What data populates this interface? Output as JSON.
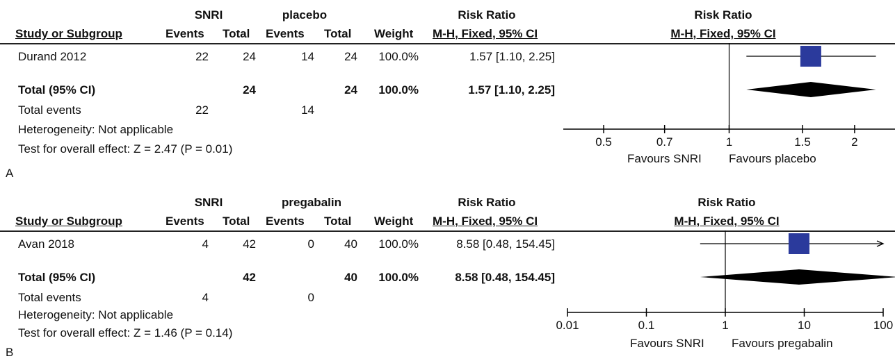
{
  "chart_data": [
    {
      "type": "forest",
      "panel": "A",
      "group_labels": {
        "experimental": "SNRI",
        "control": "placebo"
      },
      "effect_header": "Risk Ratio",
      "method_header": "M-H, Fixed, 95% CI",
      "columns": [
        "Study or Subgroup",
        "Events",
        "Total",
        "Events",
        "Total",
        "Weight",
        "M-H, Fixed, 95% CI"
      ],
      "studies": [
        {
          "name": "Durand 2012",
          "exp_events": "22",
          "exp_total": "24",
          "ctl_events": "14",
          "ctl_total": "24",
          "weight": "100.0%",
          "ci_text": "1.57 [1.10, 2.25]",
          "estimate": 1.57,
          "lower": 1.1,
          "upper": 2.25
        }
      ],
      "total": {
        "label": "Total (95% CI)",
        "exp_total": "24",
        "ctl_total": "24",
        "weight": "100.0%",
        "ci_text": "1.57 [1.10, 2.25]",
        "estimate": 1.57,
        "lower": 1.1,
        "upper": 2.25
      },
      "total_events": {
        "label": "Total events",
        "exp": "22",
        "ctl": "14"
      },
      "heterogeneity": "Heterogeneity: Not applicable",
      "overall_effect": "Test for overall effect: Z = 2.47 (P = 0.01)",
      "axis": {
        "scale": "log",
        "xlim": [
          0.4,
          2.5
        ],
        "ticks": [
          {
            "value": 0.5,
            "label": "0.5"
          },
          {
            "value": 0.7,
            "label": "0.7"
          },
          {
            "value": 1,
            "label": "1"
          },
          {
            "value": 1.5,
            "label": "1.5"
          },
          {
            "value": 2,
            "label": "2"
          }
        ]
      },
      "favours_left": "Favours SNRI",
      "favours_right": "Favours placebo"
    },
    {
      "type": "forest",
      "panel": "B",
      "group_labels": {
        "experimental": "SNRI",
        "control": "pregabalin"
      },
      "effect_header": "Risk Ratio",
      "method_header": "M-H, Fixed, 95% CI",
      "columns": [
        "Study or Subgroup",
        "Events",
        "Total",
        "Events",
        "Total",
        "Weight",
        "M-H, Fixed, 95% CI"
      ],
      "studies": [
        {
          "name": "Avan 2018",
          "exp_events": "4",
          "exp_total": "42",
          "ctl_events": "0",
          "ctl_total": "40",
          "weight": "100.0%",
          "ci_text": "8.58 [0.48, 154.45]",
          "estimate": 8.58,
          "lower": 0.48,
          "upper": 154.45
        }
      ],
      "total": {
        "label": "Total (95% CI)",
        "exp_total": "42",
        "ctl_total": "40",
        "weight": "100.0%",
        "ci_text": "8.58 [0.48, 154.45]",
        "estimate": 8.58,
        "lower": 0.48,
        "upper": 154.45
      },
      "total_events": {
        "label": "Total events",
        "exp": "4",
        "ctl": "0"
      },
      "heterogeneity": "Heterogeneity: Not applicable",
      "overall_effect": "Test for overall effect: Z = 1.46 (P = 0.14)",
      "axis": {
        "scale": "log",
        "xlim": [
          0.01,
          100
        ],
        "ticks": [
          {
            "value": 0.01,
            "label": "0.01"
          },
          {
            "value": 0.1,
            "label": "0.1"
          },
          {
            "value": 1,
            "label": "1"
          },
          {
            "value": 10,
            "label": "10"
          },
          {
            "value": 100,
            "label": "100"
          }
        ]
      },
      "favours_left": "Favours SNRI",
      "favours_right": "Favours pregabalin"
    }
  ],
  "colors": {
    "study_box": "#2b3a9c",
    "diamond": "#000000",
    "line": "#000000"
  }
}
